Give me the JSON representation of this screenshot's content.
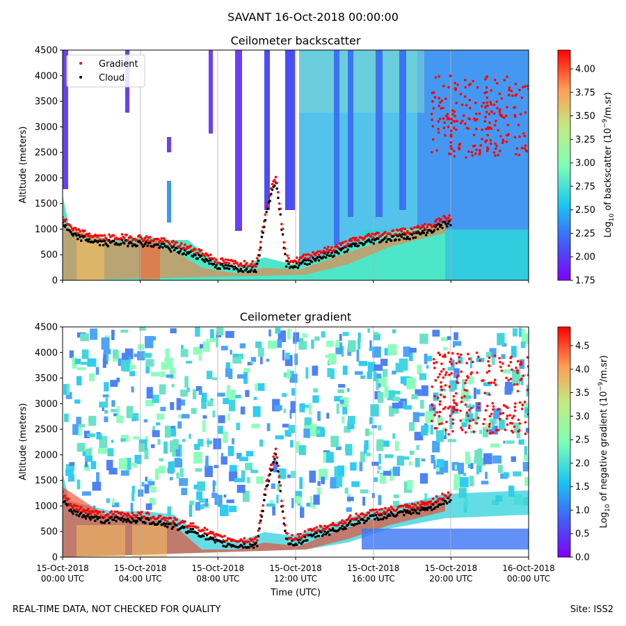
{
  "suptitle": "SAVANT 16-Oct-2018 00:00:00",
  "footer_left": "REAL-TIME DATA, NOT CHECKED FOR QUALITY",
  "footer_right": "Site: ISS2",
  "x_ticks": [
    {
      "l1": "15-Oct-2018",
      "l2": "00:00 UTC",
      "hour": 0
    },
    {
      "l1": "15-Oct-2018",
      "l2": "04:00 UTC",
      "hour": 4
    },
    {
      "l1": "15-Oct-2018",
      "l2": "08:00 UTC",
      "hour": 8
    },
    {
      "l1": "15-Oct-2018",
      "l2": "12:00 UTC",
      "hour": 12
    },
    {
      "l1": "15-Oct-2018",
      "l2": "16:00 UTC",
      "hour": 16
    },
    {
      "l1": "15-Oct-2018",
      "l2": "20:00 UTC",
      "hour": 20
    },
    {
      "l1": "16-Oct-2018",
      "l2": "00:00 UTC",
      "hour": 24
    }
  ],
  "legend": [
    {
      "label": "Gradient",
      "color": "#ff0000"
    },
    {
      "label": "Cloud",
      "color": "#000000"
    }
  ],
  "chart_data": [
    {
      "type": "heatmap",
      "title": "Ceilometer backscatter",
      "xlabel": "",
      "ylabel": "Altitude (meters)",
      "ylim": [
        0,
        4500
      ],
      "yticks": [
        0,
        500,
        1000,
        1500,
        2000,
        2500,
        3000,
        3500,
        4000,
        4500
      ],
      "colorbar": {
        "label": "Log10 of backscatter (10^-9/m.sr)",
        "range": [
          1.75,
          4.2
        ],
        "ticks": [
          "1.75",
          "2.00",
          "2.25",
          "2.50",
          "2.75",
          "3.00",
          "3.25",
          "3.50",
          "3.75",
          "4.00"
        ],
        "colormap": "rainbow"
      },
      "legend_position": "upper-left",
      "series": [
        {
          "name": "Gradient",
          "color": "#ff0000"
        },
        {
          "name": "Cloud",
          "color": "#000000"
        }
      ],
      "cloud_base_trace": {
        "hour": [
          0,
          0.5,
          1,
          2,
          3,
          4,
          5,
          6,
          7,
          8,
          9,
          10,
          10.5,
          11,
          11.5,
          12,
          13,
          14,
          15,
          16,
          17,
          18,
          19,
          19.5,
          20
        ],
        "altitude": [
          1150,
          900,
          850,
          750,
          760,
          750,
          700,
          600,
          500,
          300,
          250,
          250,
          1400,
          2000,
          350,
          300,
          450,
          550,
          700,
          800,
          850,
          900,
          1000,
          1100,
          1150
        ]
      }
    },
    {
      "type": "heatmap",
      "title": "Ceilometer gradient",
      "xlabel": "Time (UTC)",
      "ylabel": "Altitude (meters)",
      "ylim": [
        0,
        4500
      ],
      "yticks": [
        0,
        500,
        1000,
        1500,
        2000,
        2500,
        3000,
        3500,
        4000,
        4500
      ],
      "colorbar": {
        "label": "Log10 of negative gradient (10^-9/m.sr)",
        "range": [
          0.0,
          4.9
        ],
        "ticks": [
          "0.0",
          "0.5",
          "1.0",
          "1.5",
          "2.0",
          "2.5",
          "3.0",
          "3.5",
          "4.0",
          "4.5"
        ],
        "colormap": "rainbow"
      },
      "series": [
        {
          "name": "Gradient",
          "color": "#ff0000"
        },
        {
          "name": "Cloud",
          "color": "#000000"
        }
      ]
    }
  ]
}
